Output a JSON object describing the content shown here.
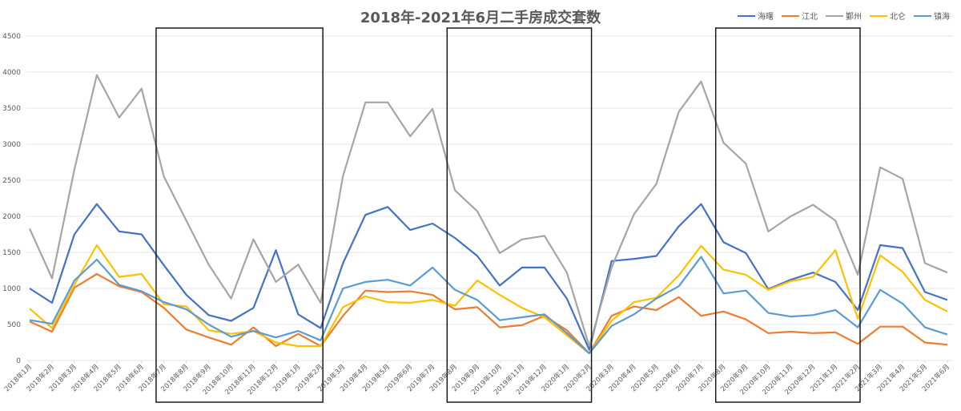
{
  "chart_data": {
    "type": "line",
    "title": "2018年-2021年6月二手房成交套数",
    "xlabel": "",
    "ylabel": "",
    "ylim": [
      0,
      4500
    ],
    "yticks": [
      0,
      500,
      1000,
      1500,
      2000,
      2500,
      3000,
      3500,
      4000,
      4500
    ],
    "grid": true,
    "legend_position": "top-right",
    "categories": [
      "2018年1月",
      "2018年2月",
      "2018年3月",
      "2018年4月",
      "2018年5月",
      "2018年6月",
      "2018年7月",
      "2018年8月",
      "2018年9月",
      "2018年10月",
      "2018年11月",
      "2018年12月",
      "2019年1月",
      "2019年2月",
      "2019年3月",
      "2019年4月",
      "2019年5月",
      "2019年6月",
      "2019年7月",
      "2019年8月",
      "2019年9月",
      "2019年10月",
      "2019年11月",
      "2019年12月",
      "2020年1月",
      "2020年2月",
      "2020年3月",
      "2020年4月",
      "2020年5月",
      "2020年6月",
      "2020年7月",
      "2020年8月",
      "2020年9月",
      "2020年10月",
      "2020年11月",
      "2020年12月",
      "2021年1月",
      "2021年2月",
      "2021年3月",
      "2021年4月",
      "2021年5月",
      "2021年6月"
    ],
    "series": [
      {
        "name": "海曙",
        "color": "#4472C4",
        "values": [
          1000,
          800,
          1750,
          2170,
          1790,
          1750,
          1320,
          910,
          630,
          550,
          730,
          1530,
          640,
          450,
          1350,
          2020,
          2130,
          1810,
          1900,
          1700,
          1450,
          1040,
          1290,
          1290,
          860,
          150,
          1380,
          1410,
          1450,
          1860,
          2170,
          1640,
          1490,
          990,
          1120,
          1220,
          1090,
          700,
          1600,
          1560,
          950,
          840
        ]
      },
      {
        "name": "江北",
        "color": "#ED7D31",
        "values": [
          540,
          400,
          1010,
          1200,
          1030,
          950,
          730,
          430,
          320,
          220,
          460,
          200,
          370,
          200,
          620,
          970,
          950,
          960,
          910,
          710,
          740,
          460,
          490,
          620,
          420,
          100,
          620,
          750,
          700,
          880,
          620,
          680,
          570,
          380,
          400,
          380,
          390,
          230,
          470,
          470,
          250,
          220
        ]
      },
      {
        "name": "鄞州",
        "color": "#A5A5A5",
        "values": [
          1830,
          1140,
          2650,
          3960,
          3370,
          3770,
          2550,
          1940,
          1330,
          860,
          1680,
          1090,
          1330,
          800,
          2560,
          3580,
          3580,
          3110,
          3490,
          2360,
          2070,
          1490,
          1680,
          1730,
          1220,
          200,
          1290,
          2030,
          2450,
          3450,
          3870,
          3020,
          2730,
          1790,
          2000,
          2160,
          1940,
          1190,
          2680,
          2520,
          1350,
          1220
        ]
      },
      {
        "name": "北仑",
        "color": "#FFC000",
        "values": [
          720,
          450,
          1050,
          1600,
          1160,
          1200,
          780,
          750,
          420,
          370,
          410,
          250,
          200,
          200,
          740,
          890,
          810,
          800,
          840,
          760,
          1110,
          910,
          730,
          600,
          350,
          100,
          550,
          810,
          870,
          1180,
          1590,
          1260,
          1190,
          980,
          1100,
          1160,
          1530,
          580,
          1460,
          1230,
          840,
          680
        ]
      },
      {
        "name": "镇海",
        "color": "#5B9BD5",
        "values": [
          560,
          510,
          1110,
          1400,
          1050,
          960,
          810,
          710,
          500,
          330,
          410,
          320,
          410,
          280,
          1000,
          1090,
          1120,
          1040,
          1290,
          980,
          840,
          560,
          600,
          640,
          380,
          100,
          480,
          640,
          860,
          1030,
          1440,
          930,
          970,
          660,
          610,
          630,
          700,
          460,
          980,
          790,
          460,
          360
        ]
      }
    ],
    "annotations": [
      {
        "type": "rectangle",
        "from": "2018年7月",
        "to": "2019年2月"
      },
      {
        "type": "rectangle",
        "from": "2019年8月",
        "to": "2020年2月"
      },
      {
        "type": "rectangle",
        "from": "2020年8月",
        "to": "2021年2月"
      }
    ]
  },
  "legend": [
    {
      "label": "海曙",
      "color": "#4472C4"
    },
    {
      "label": "江北",
      "color": "#ED7D31"
    },
    {
      "label": "鄞州",
      "color": "#A5A5A5"
    },
    {
      "label": "北仑",
      "color": "#FFC000"
    },
    {
      "label": "镇海",
      "color": "#5B9BD5"
    }
  ]
}
